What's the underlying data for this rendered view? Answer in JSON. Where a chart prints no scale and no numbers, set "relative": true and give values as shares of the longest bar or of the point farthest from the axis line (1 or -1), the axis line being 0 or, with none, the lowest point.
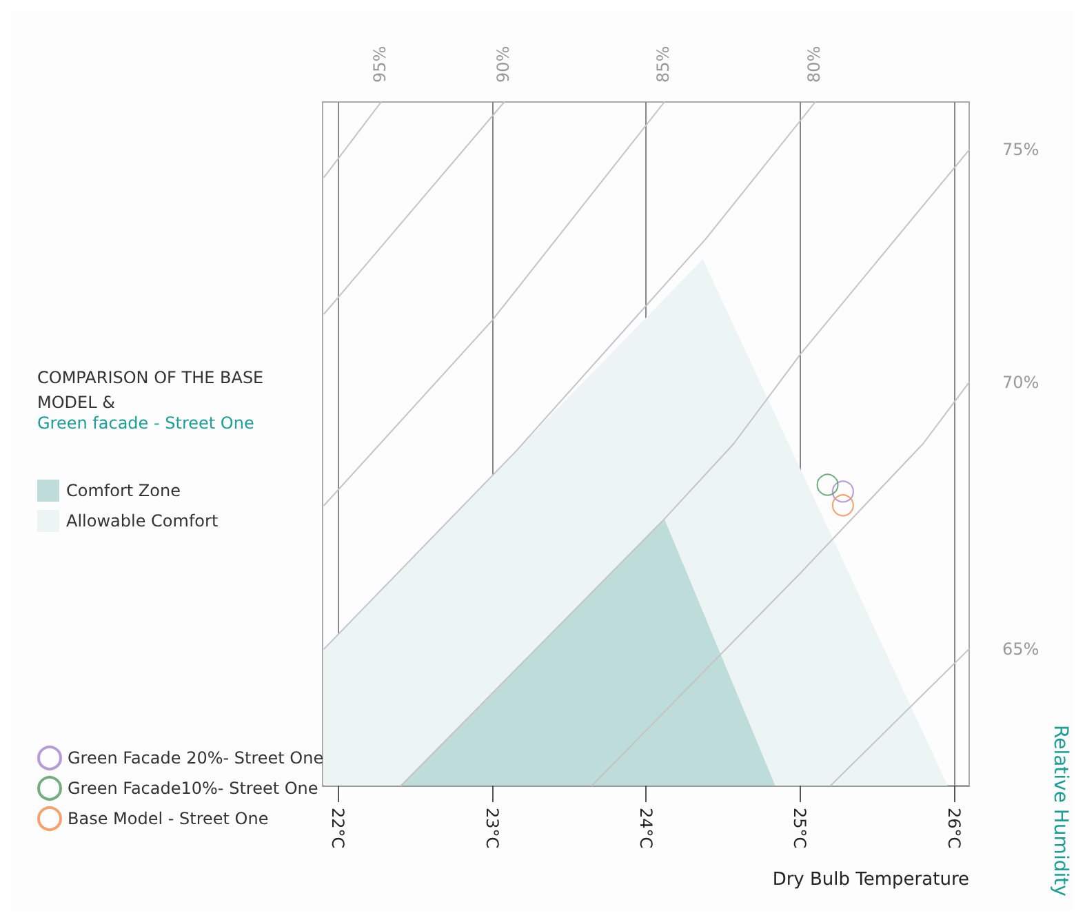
{
  "chart_data": {
    "type": "line",
    "title": "COMPARISON OF THE BASE MODEL &",
    "subtitle": "Green facade - Street One",
    "xlabel": "Dry Bulb Temperature",
    "ylabel": "Relative Humidity",
    "relative": true,
    "xlim": [
      21.9,
      26.1
    ],
    "xticks": [
      {
        "value": 22,
        "label": "22°C"
      },
      {
        "value": 23,
        "label": "23°C"
      },
      {
        "value": 24,
        "label": "24°C"
      },
      {
        "value": 25,
        "label": "25°C"
      },
      {
        "value": 26,
        "label": "26°C"
      }
    ],
    "grid": "x",
    "legend": "left",
    "series": [
      {
        "type": "area",
        "name": "Allowable Comfort",
        "color": "#edf5f4",
        "x": [
          21.91,
          21.91,
          23.16,
          24.37,
          25.96
        ],
        "values": [
          0,
          0.2,
          0.49,
          0.77,
          0
        ]
      },
      {
        "type": "area",
        "name": "Comfort Zone",
        "color": "#bddcda",
        "x": [
          22.41,
          24.12,
          24.84
        ],
        "values": [
          0,
          0.39,
          0
        ]
      },
      {
        "name": "95%",
        "color": "#c4c4c4",
        "line_style": "solid",
        "marker": "none",
        "x": [
          21.91,
          22.28
        ],
        "values": [
          0.89,
          1
        ]
      },
      {
        "name": "90%",
        "color": "#c4c4c4",
        "line_style": "solid",
        "marker": "none",
        "x": [
          21.91,
          23.08
        ],
        "values": [
          0.69,
          1
        ]
      },
      {
        "name": "85%",
        "color": "#c4c4c4",
        "line_style": "solid",
        "marker": "none",
        "x": [
          21.91,
          23.0,
          24.12
        ],
        "values": [
          0.41,
          0.68,
          1
        ]
      },
      {
        "name": "80%",
        "color": "#c4c4c4",
        "line_style": "solid",
        "marker": "none",
        "x": [
          21.91,
          23.16,
          24.39,
          25.1
        ],
        "values": [
          0.2,
          0.49,
          0.8,
          1
        ]
      },
      {
        "name": "75%",
        "color": "#c4c4c4",
        "line_style": "solid",
        "marker": "none",
        "x": [
          22.41,
          24.12,
          24.57,
          25.0,
          26.1
        ],
        "values": [
          0,
          0.39,
          0.5,
          0.63,
          0.93
        ]
      },
      {
        "name": "70%",
        "color": "#c4c4c4",
        "line_style": "solid",
        "marker": "none",
        "x": [
          23.65,
          25.0,
          25.8,
          26.1
        ],
        "values": [
          0,
          0.31,
          0.5,
          0.59
        ]
      },
      {
        "name": "65%",
        "color": "#c4c4c4",
        "line_style": "solid",
        "marker": "none",
        "x": [
          25.2,
          26.1
        ],
        "values": [
          0,
          0.2
        ]
      },
      {
        "type": "scatter",
        "name": "Green Facade 20%- Street One",
        "color": "#a57fcf",
        "marker": "circle",
        "x": [
          25.28
        ],
        "values": [
          0.43
        ]
      },
      {
        "type": "scatter",
        "name": "Green Facade10%- Street One",
        "color": "#4f9a5c",
        "marker": "circle",
        "x": [
          25.18
        ],
        "values": [
          0.44
        ]
      },
      {
        "type": "scatter",
        "name": "Base Model - Street One",
        "color": "#f08a4b",
        "marker": "circle",
        "x": [
          25.28
        ],
        "values": [
          0.41
        ]
      }
    ]
  }
}
